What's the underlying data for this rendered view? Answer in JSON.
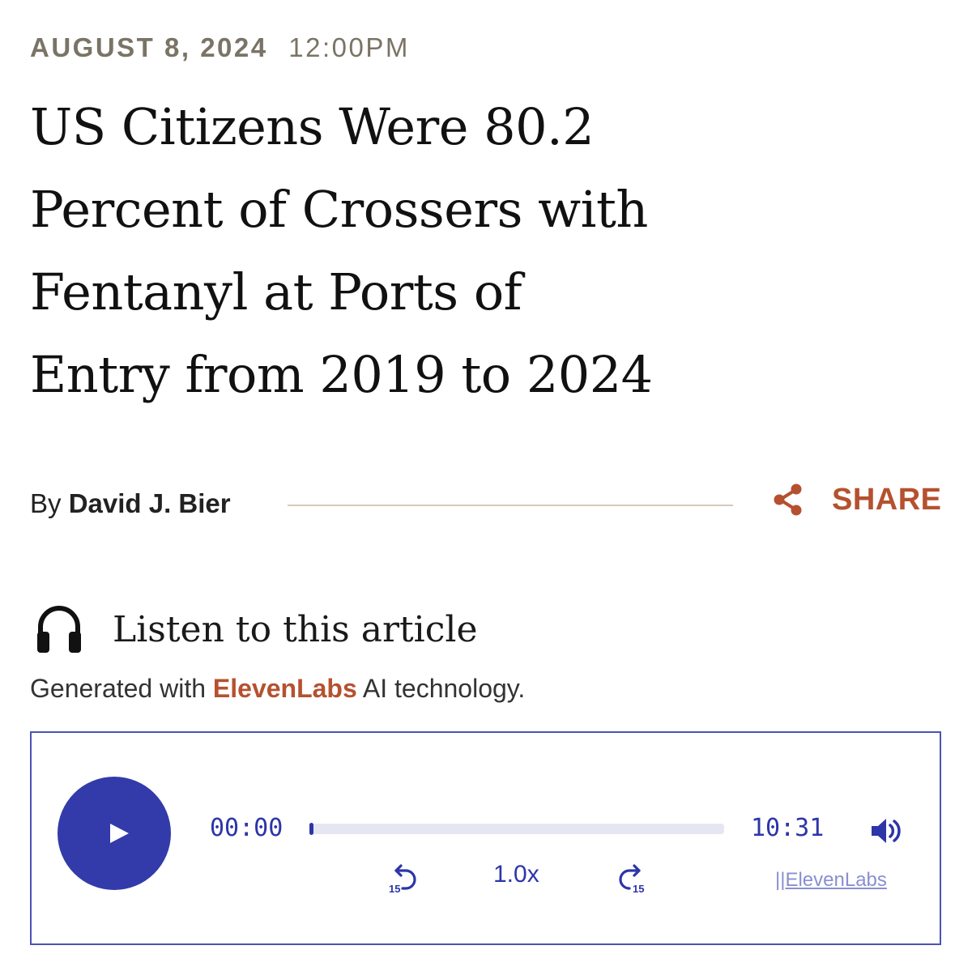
{
  "article": {
    "date": "AUGUST 8, 2024",
    "time": "12:00PM",
    "title_lines": [
      "US Citizens Were 80.2",
      "Percent of Crossers with",
      "Fentanyl at Ports of",
      "Entry from 2019 to 2024"
    ],
    "byline_prefix": "By",
    "author": "David J. Bier",
    "share_label": "SHARE"
  },
  "listen": {
    "heading": "Listen to this article",
    "generated_prefix": "Generated with",
    "generated_brand": "ElevenLabs",
    "generated_suffix": "AI technology."
  },
  "player": {
    "current_time": "00:00",
    "total_time": "10:31",
    "progress_fraction": 0.01,
    "speed": "1.0x",
    "skip_back": "15",
    "skip_forward": "15",
    "brand_link": "||ElevenLabs",
    "play_icon": "play-icon",
    "volume_icon": "volume-icon"
  },
  "colors": {
    "accent": "#b5512f",
    "player_blue": "#323ba9",
    "meta_gray": "#7a7466"
  }
}
